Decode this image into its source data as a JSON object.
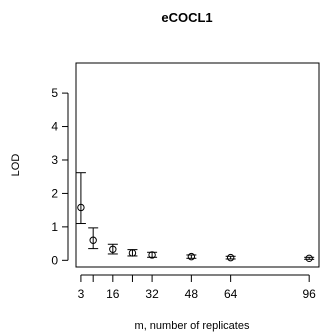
{
  "chart_data": {
    "type": "scatter",
    "title": "eCOCL1",
    "xlabel": "m, number of replicates",
    "ylabel": "LOD",
    "x_ticks": [
      3,
      16,
      32,
      48,
      64,
      96
    ],
    "y_ticks": [
      0,
      1,
      2,
      3,
      4,
      5
    ],
    "xlim": [
      1,
      100
    ],
    "ylim": [
      -0.2,
      5.9
    ],
    "series": [
      {
        "points": [
          {
            "x": 3,
            "y": 1.58,
            "lo": 1.1,
            "hi": 2.62
          },
          {
            "x": 8,
            "y": 0.6,
            "lo": 0.35,
            "hi": 0.97
          },
          {
            "x": 16,
            "y": 0.33,
            "lo": 0.19,
            "hi": 0.48
          },
          {
            "x": 24,
            "y": 0.22,
            "lo": 0.13,
            "hi": 0.32
          },
          {
            "x": 32,
            "y": 0.16,
            "lo": 0.09,
            "hi": 0.24
          },
          {
            "x": 48,
            "y": 0.11,
            "lo": 0.06,
            "hi": 0.16
          },
          {
            "x": 64,
            "y": 0.08,
            "lo": 0.04,
            "hi": 0.12
          },
          {
            "x": 96,
            "y": 0.06,
            "lo": 0.03,
            "hi": 0.09
          }
        ]
      }
    ],
    "minor_x_ticks": [
      8,
      24
    ],
    "grid": false
  }
}
